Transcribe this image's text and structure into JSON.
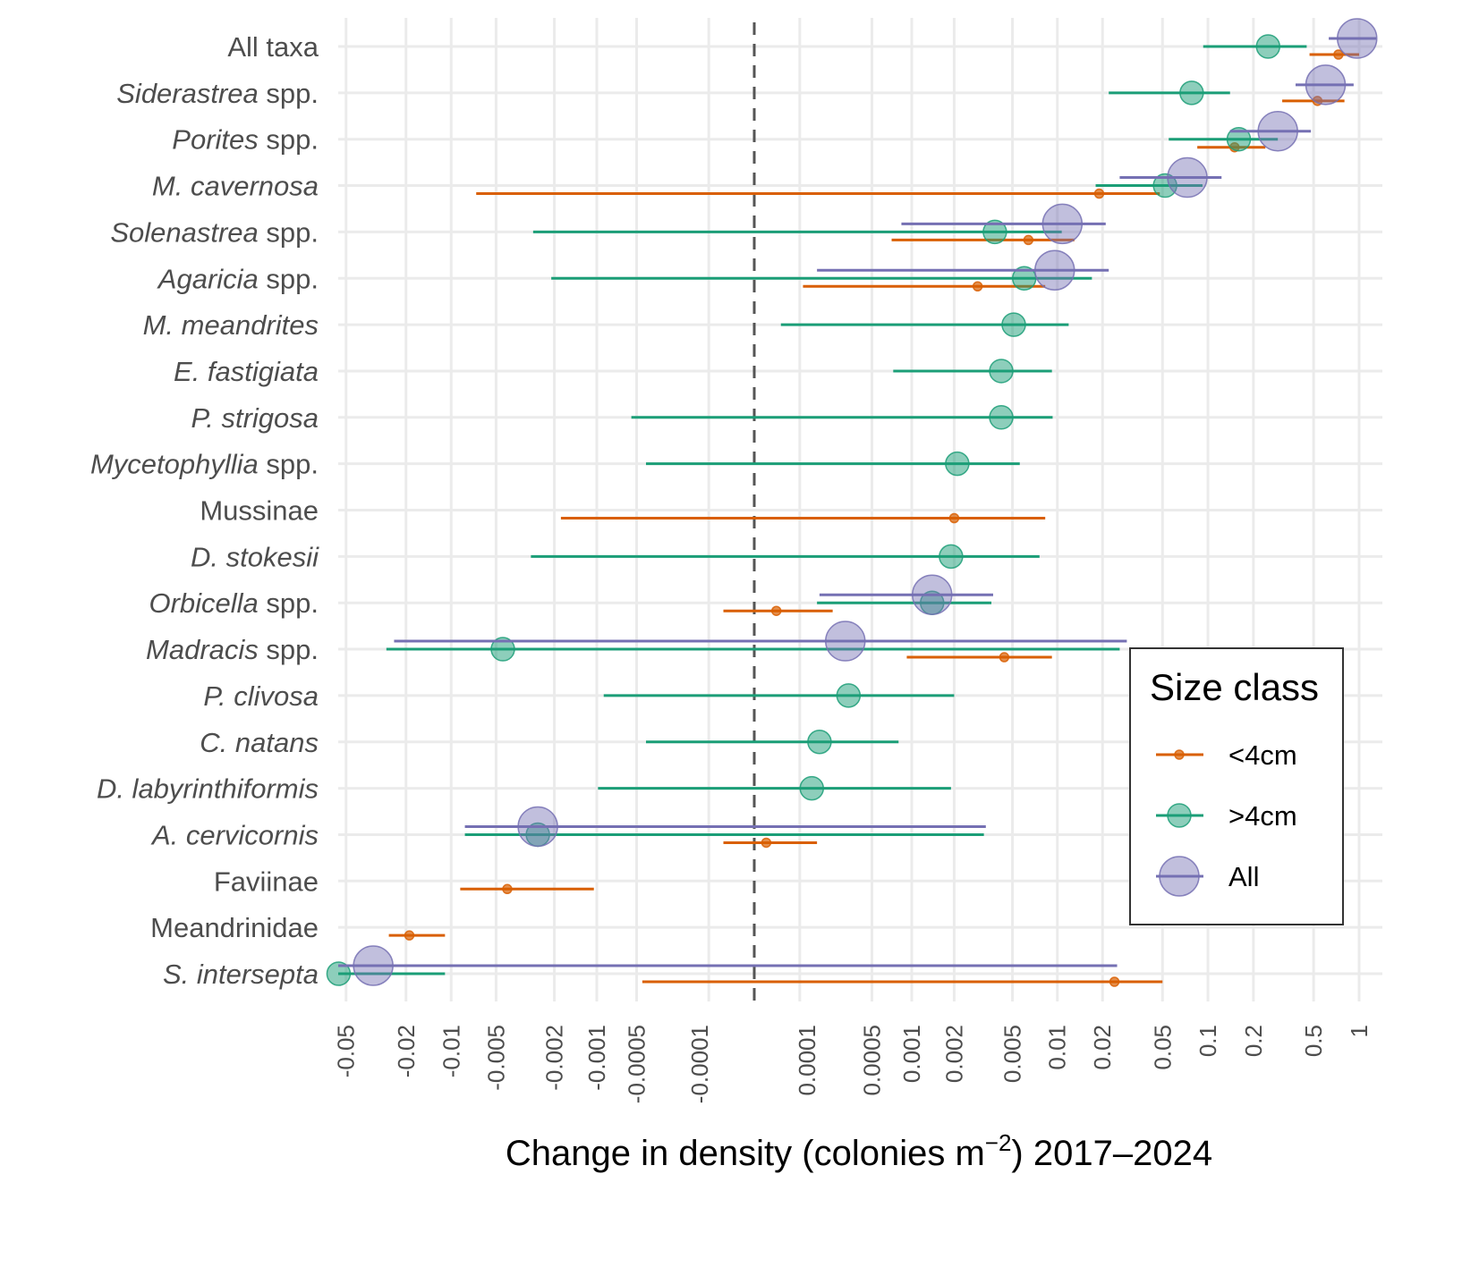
{
  "chart_data": {
    "type": "scatter",
    "xlabel_parts": [
      "Change in density (colonies m",
      "−2",
      ") 2017–2024"
    ],
    "x_ticks": [
      "-0.05",
      "-0.02",
      "-0.01",
      "-0.005",
      "-0.002",
      "-0.001",
      "-0.0005",
      "-0.0001",
      "0.0001",
      "0.0005",
      "0.001",
      "0.002",
      "0.005",
      "0.01",
      "0.02",
      "0.05",
      "0.1",
      "0.2",
      "0.5",
      "1"
    ],
    "x_scale": "pseudo-log",
    "reference_line": 0,
    "grid": true,
    "legend": {
      "title": "Size class",
      "position": "right",
      "entries": [
        {
          "label": "<4cm",
          "color": "#D95F02"
        },
        {
          "label": ">4cm",
          "color": "#1B9E77"
        },
        {
          "label": "All",
          "color": "#7570B3"
        }
      ]
    },
    "categories": [
      {
        "parts": [
          {
            "t": "All taxa",
            "i": false
          }
        ]
      },
      {
        "parts": [
          {
            "t": "Siderastrea",
            "i": true
          },
          {
            "t": " spp.",
            "i": false
          }
        ]
      },
      {
        "parts": [
          {
            "t": "Porites",
            "i": true
          },
          {
            "t": " spp.",
            "i": false
          }
        ]
      },
      {
        "parts": [
          {
            "t": "M. cavernosa",
            "i": true
          }
        ]
      },
      {
        "parts": [
          {
            "t": "Solenastrea",
            "i": true
          },
          {
            "t": " spp.",
            "i": false
          }
        ]
      },
      {
        "parts": [
          {
            "t": "Agaricia",
            "i": true
          },
          {
            "t": " spp.",
            "i": false
          }
        ]
      },
      {
        "parts": [
          {
            "t": "M. meandrites",
            "i": true
          }
        ]
      },
      {
        "parts": [
          {
            "t": "E. fastigiata",
            "i": true
          }
        ]
      },
      {
        "parts": [
          {
            "t": "P. strigosa",
            "i": true
          }
        ]
      },
      {
        "parts": [
          {
            "t": "Mycetophyllia",
            "i": true
          },
          {
            "t": " spp.",
            "i": false
          }
        ]
      },
      {
        "parts": [
          {
            "t": "Mussinae",
            "i": false
          }
        ]
      },
      {
        "parts": [
          {
            "t": "D. stokesii",
            "i": true
          }
        ]
      },
      {
        "parts": [
          {
            "t": "Orbicella",
            "i": true
          },
          {
            "t": " spp.",
            "i": false
          }
        ]
      },
      {
        "parts": [
          {
            "t": "Madracis",
            "i": true
          },
          {
            "t": " spp.",
            "i": false
          }
        ]
      },
      {
        "parts": [
          {
            "t": "P. clivosa",
            "i": true
          }
        ]
      },
      {
        "parts": [
          {
            "t": "C. natans",
            "i": true
          }
        ]
      },
      {
        "parts": [
          {
            "t": "D. labyrinthiformis",
            "i": true
          }
        ]
      },
      {
        "parts": [
          {
            "t": "A. cervicornis",
            "i": true
          }
        ]
      },
      {
        "parts": [
          {
            "t": "Faviinae",
            "i": false
          }
        ]
      },
      {
        "parts": [
          {
            "t": "Meandrinidae",
            "i": false
          }
        ]
      },
      {
        "parts": [
          {
            "t": "S. intersepta",
            "i": true
          }
        ]
      }
    ],
    "series": [
      {
        "name": "<4cm",
        "color": "#D95F02",
        "points": [
          {
            "cat": "All taxa",
            "x": 0.73,
            "lo": 0.47,
            "hi": 1.0
          },
          {
            "cat": "Siderastrea spp.",
            "x": 0.53,
            "lo": 0.31,
            "hi": 0.8
          },
          {
            "cat": "Porites spp.",
            "x": 0.15,
            "lo": 0.085,
            "hi": 0.24
          },
          {
            "cat": "M. cavernosa",
            "x": 0.019,
            "lo": -0.0068,
            "hi": 0.048
          },
          {
            "cat": "Solenastrea spp.",
            "x": 0.0064,
            "lo": 0.00071,
            "hi": 0.013
          },
          {
            "cat": "Agaricia spp.",
            "x": 0.0029,
            "lo": 0.00011,
            "hi": 0.0083
          },
          {
            "cat": "Mussinae",
            "x": 0.002,
            "lo": -0.0018,
            "hi": 0.0083
          },
          {
            "cat": "Orbicella spp.",
            "x": 4e-05,
            "lo": -6e-05,
            "hi": 0.00023
          },
          {
            "cat": "Madracis spp.",
            "x": 0.0044,
            "lo": 0.00092,
            "hi": 0.0092
          },
          {
            "cat": "A. cervicornis",
            "x": 2e-05,
            "lo": -6e-05,
            "hi": 0.00016
          },
          {
            "cat": "Faviinae",
            "x": -0.0042,
            "lo": -0.0087,
            "hi": -0.00105
          },
          {
            "cat": "Meandrinidae",
            "x": -0.019,
            "lo": -0.026,
            "hi": -0.011
          },
          {
            "cat": "S. intersepta",
            "x": 0.024,
            "lo": -0.00045,
            "hi": 0.05
          }
        ]
      },
      {
        "name": ">4cm",
        "color": "#1B9E77",
        "points": [
          {
            "cat": "All taxa",
            "x": 0.25,
            "lo": 0.093,
            "hi": 0.45
          },
          {
            "cat": "Siderastrea spp.",
            "x": 0.078,
            "lo": 0.022,
            "hi": 0.14
          },
          {
            "cat": "Porites spp.",
            "x": 0.16,
            "lo": 0.055,
            "hi": 0.29
          },
          {
            "cat": "M. cavernosa",
            "x": 0.052,
            "lo": 0.018,
            "hi": 0.092
          },
          {
            "cat": "Solenastrea spp.",
            "x": 0.0038,
            "lo": -0.0028,
            "hi": 0.0107
          },
          {
            "cat": "Agaricia spp.",
            "x": 0.006,
            "lo": -0.0021,
            "hi": 0.017
          },
          {
            "cat": "M. meandrites",
            "x": 0.0051,
            "lo": 5e-05,
            "hi": 0.0119
          },
          {
            "cat": "E. fastigiata",
            "x": 0.0042,
            "lo": 0.00073,
            "hi": 0.0092
          },
          {
            "cat": "P. strigosa",
            "x": 0.0042,
            "lo": -0.00055,
            "hi": 0.0093
          },
          {
            "cat": "Mycetophyllia spp.",
            "x": 0.0021,
            "lo": -0.00042,
            "hi": 0.0056
          },
          {
            "cat": "D. stokesii",
            "x": 0.0019,
            "lo": -0.0029,
            "hi": 0.0076
          },
          {
            "cat": "Orbicella spp.",
            "x": 0.0014,
            "lo": 0.00016,
            "hi": 0.0036
          },
          {
            "cat": "Madracis spp.",
            "x": -0.0045,
            "lo": -0.027,
            "hi": 0.026
          },
          {
            "cat": "P. clivosa",
            "x": 0.00032,
            "lo": -0.00089,
            "hi": 0.002
          },
          {
            "cat": "C. natans",
            "x": 0.00017,
            "lo": -0.00042,
            "hi": 0.0008
          },
          {
            "cat": "D. labyrinthiformis",
            "x": 0.00014,
            "lo": -0.00098,
            "hi": 0.0019
          },
          {
            "cat": "A. cervicornis",
            "x": -0.0026,
            "lo": -0.0081,
            "hi": 0.0032
          },
          {
            "cat": "S. intersepta",
            "x": -0.056,
            "lo": -0.09,
            "hi": -0.011
          }
        ]
      },
      {
        "name": "All",
        "color": "#7570B3",
        "points": [
          {
            "cat": "All taxa",
            "x": 0.97,
            "lo": 0.63,
            "hi": 1.3
          },
          {
            "cat": "Siderastrea spp.",
            "x": 0.6,
            "lo": 0.38,
            "hi": 0.92
          },
          {
            "cat": "Porites spp.",
            "x": 0.29,
            "lo": 0.14,
            "hi": 0.48
          },
          {
            "cat": "M. cavernosa",
            "x": 0.073,
            "lo": 0.026,
            "hi": 0.123
          },
          {
            "cat": "Solenastrea spp.",
            "x": 0.0108,
            "lo": 0.00084,
            "hi": 0.021
          },
          {
            "cat": "Agaricia spp.",
            "x": 0.0096,
            "lo": 0.00016,
            "hi": 0.022
          },
          {
            "cat": "Orbicella spp.",
            "x": 0.0014,
            "lo": 0.00017,
            "hi": 0.0037
          },
          {
            "cat": "Madracis spp.",
            "x": 0.0003,
            "lo": -0.024,
            "hi": 0.029
          },
          {
            "cat": "A. cervicornis",
            "x": -0.0026,
            "lo": -0.0081,
            "hi": 0.0033
          },
          {
            "cat": "S. intersepta",
            "x": -0.033,
            "lo": -0.077,
            "hi": 0.025
          }
        ]
      }
    ]
  }
}
